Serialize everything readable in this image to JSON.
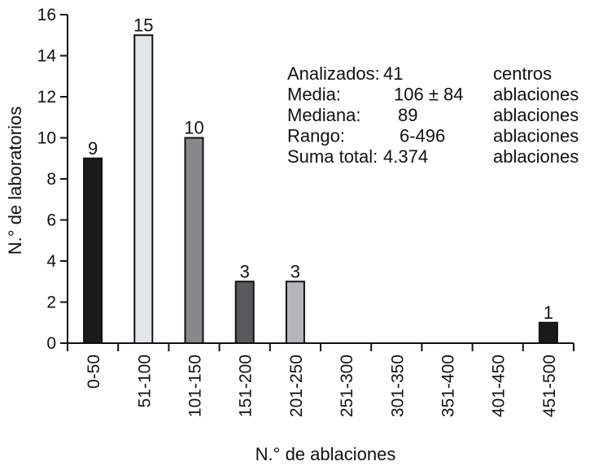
{
  "chart_data": {
    "type": "bar",
    "xlabel": "N.° de ablaciones",
    "ylabel": "N.° de laboratorios",
    "ylim": [
      0,
      16
    ],
    "yticks": [
      0,
      2,
      4,
      6,
      8,
      10,
      12,
      14,
      16
    ],
    "categories": [
      "0-50",
      "51-100",
      "101-150",
      "151-200",
      "201-250",
      "251-300",
      "301-350",
      "351-400",
      "401-450",
      "451-500"
    ],
    "values": [
      9,
      15,
      10,
      3,
      3,
      0,
      0,
      0,
      0,
      1
    ],
    "data_labels": [
      "9",
      "15",
      "10",
      "3",
      "3",
      "",
      "",
      "",
      "",
      "1"
    ],
    "bar_colors": [
      "#1a1a1a",
      "#e3e6e8",
      "#86888a",
      "#58595b",
      "#b4b6b8",
      "#ffffff",
      "#ffffff",
      "#ffffff",
      "#ffffff",
      "#1a1a1a"
    ],
    "grid": false,
    "legend": "none",
    "stats": [
      {
        "label": "Analizados:",
        "value": "41",
        "unit": "centros"
      },
      {
        "label": "Media:",
        "value": "106 ± 84",
        "unit": "ablaciones"
      },
      {
        "label": "Mediana:",
        "value": "89",
        "unit": "ablaciones"
      },
      {
        "label": "Rango:",
        "value": "6-496",
        "unit": "ablaciones"
      },
      {
        "label": "Suma total:",
        "value": "4.374",
        "unit": "ablaciones"
      }
    ]
  }
}
